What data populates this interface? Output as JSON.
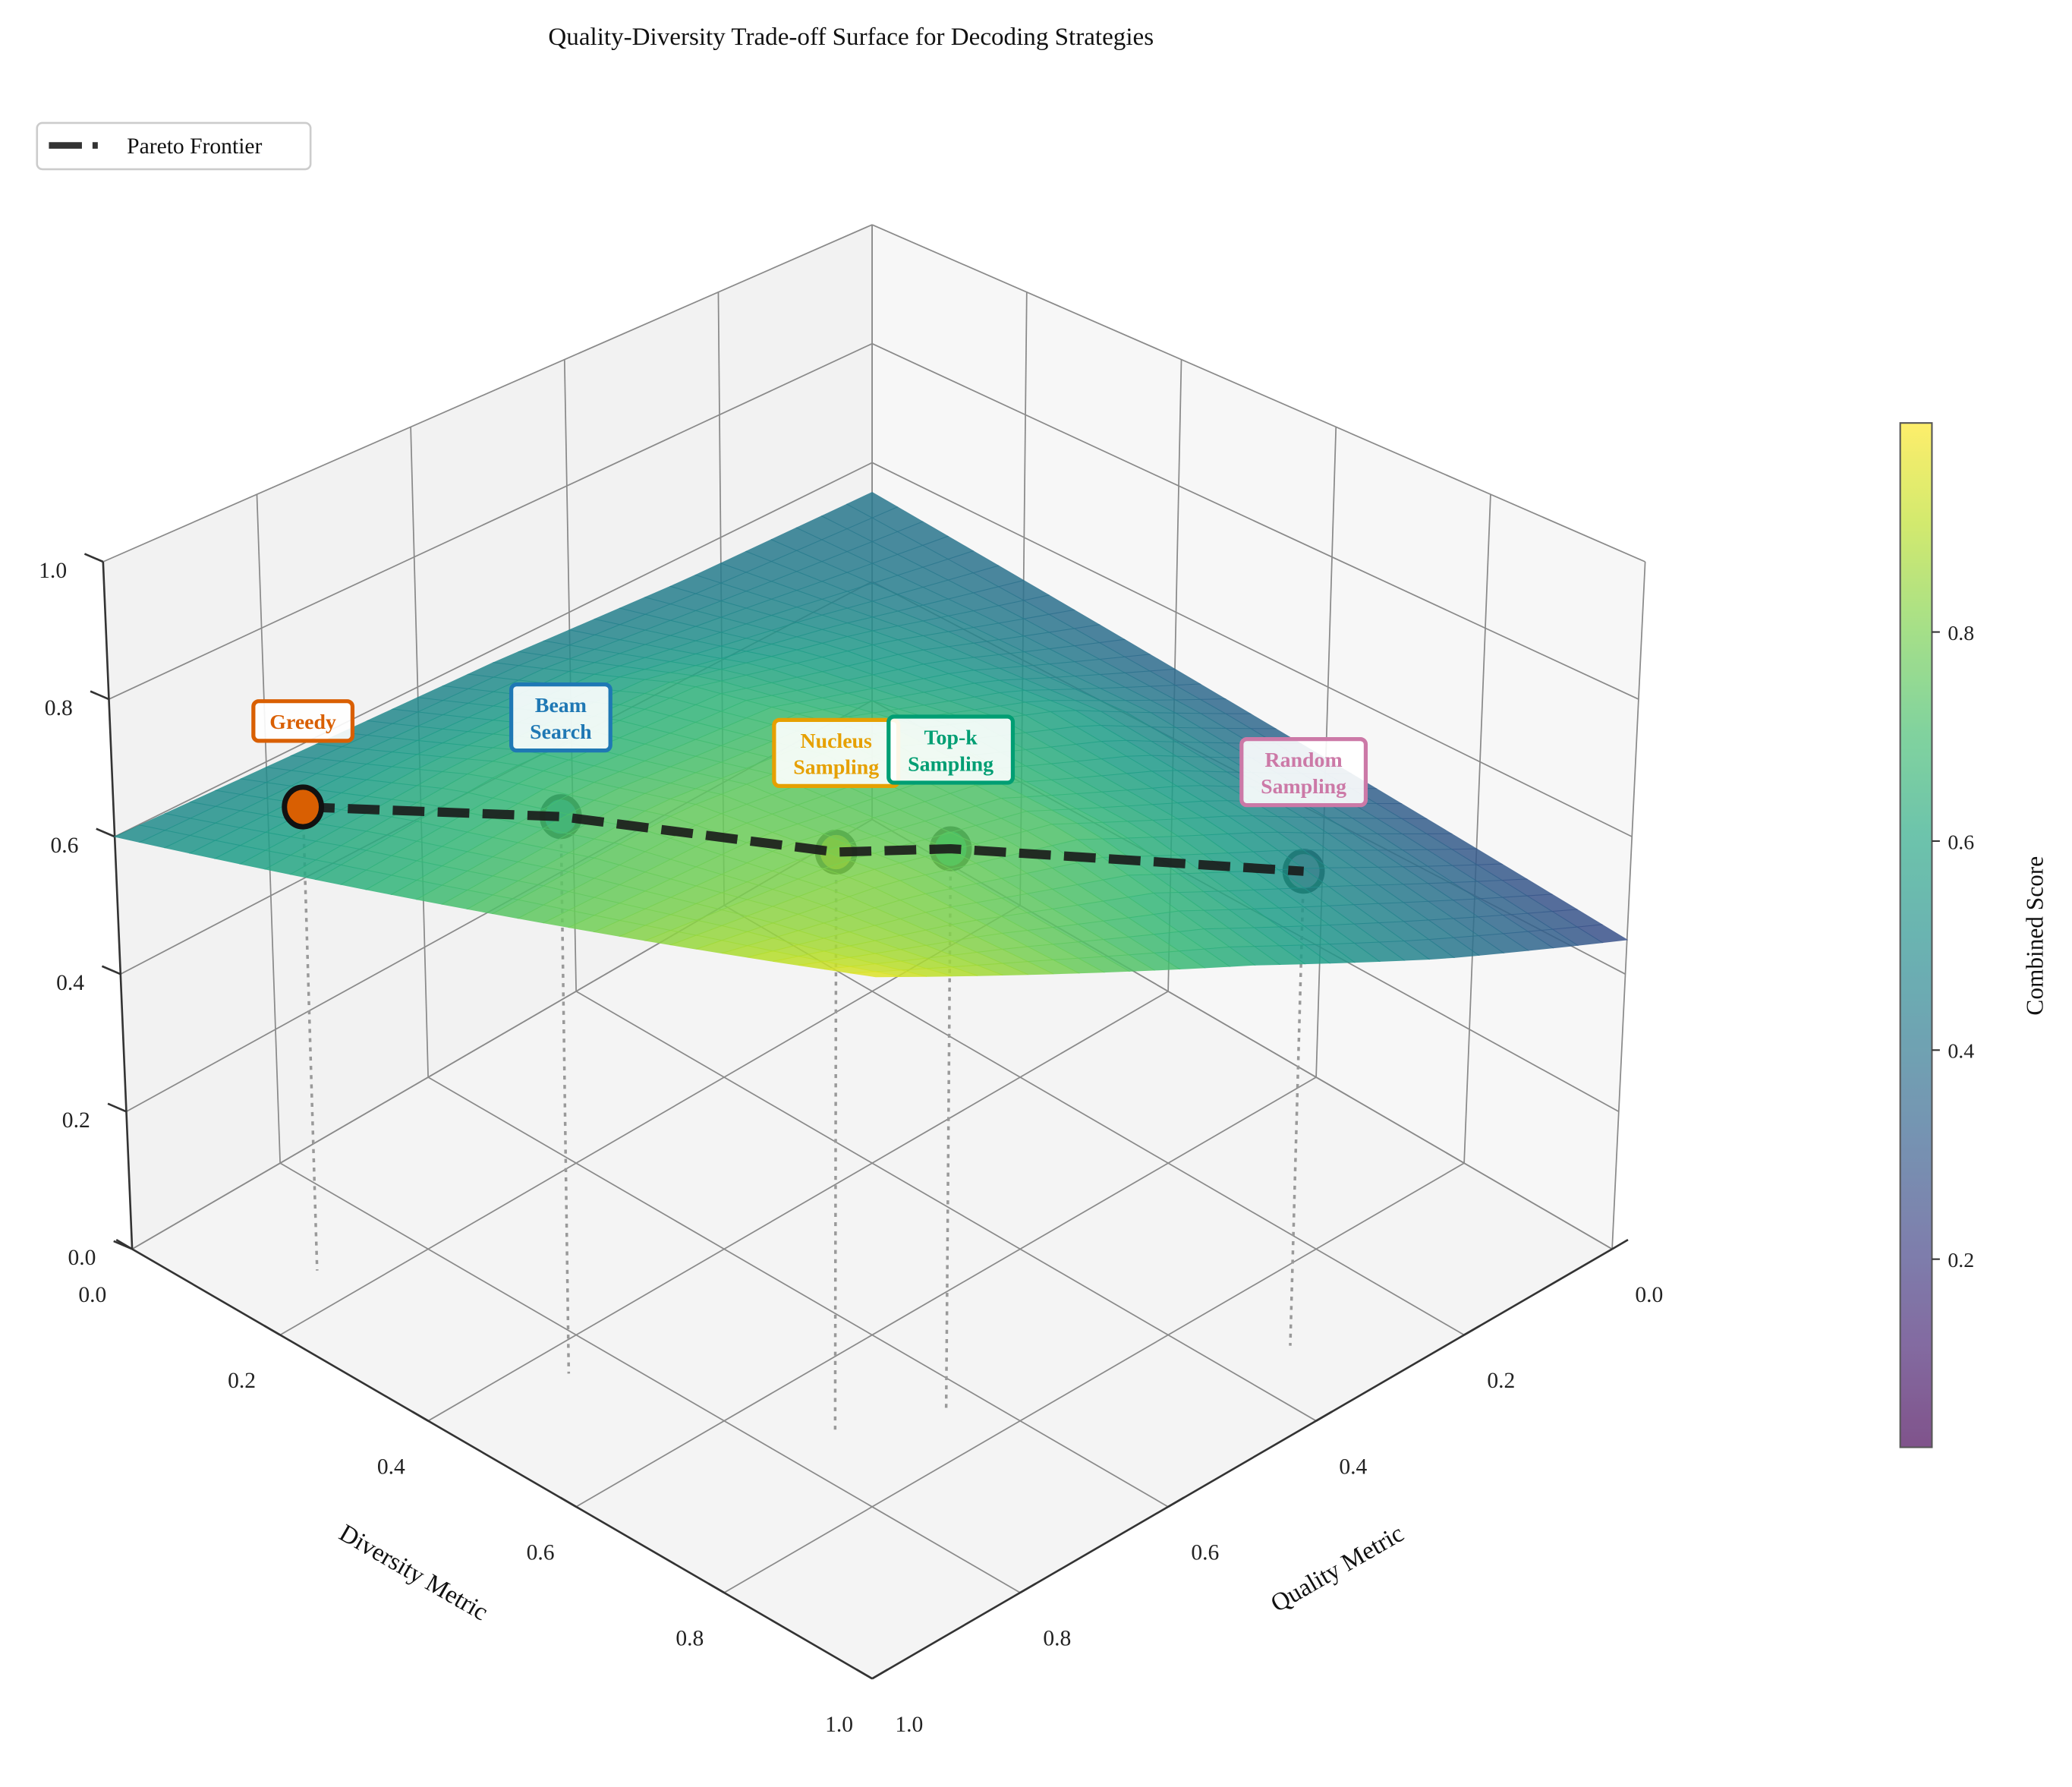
{
  "chart_data": {
    "type": "surface3d",
    "title": "Quality-Diversity Trade-off Surface for Decoding Strategies",
    "xlabel": "Quality Metric",
    "ylabel": "Diversity Metric",
    "zlabel": "",
    "xlim": [
      0,
      1
    ],
    "ylim": [
      0,
      1
    ],
    "zlim": [
      0,
      1
    ],
    "x_ticks": [
      "0.0",
      "0.2",
      "0.4",
      "0.6",
      "0.8",
      "1.0"
    ],
    "y_ticks": [
      "0.0",
      "0.2",
      "0.4",
      "0.6",
      "0.8",
      "1.0"
    ],
    "z_ticks": [
      "0.0",
      "0.2",
      "0.4",
      "0.6",
      "0.8",
      "1.0"
    ],
    "grid": true,
    "colormap": "viridis",
    "colorbar": {
      "label": "Combined Score",
      "range": [
        0.02,
        1.0
      ],
      "ticks": [
        "0.2",
        "0.4",
        "0.6",
        "0.8"
      ]
    },
    "surface": {
      "quality": [
        0,
        0.25,
        0.5,
        0.75,
        1
      ],
      "diversity": [
        0,
        0.25,
        0.5,
        0.75,
        1
      ],
      "z": [
        [
          0.55,
          0.525,
          0.5,
          0.475,
          0.45
        ],
        [
          0.56,
          0.62,
          0.65,
          0.62,
          0.56
        ],
        [
          0.58,
          0.69,
          0.75,
          0.74,
          0.68
        ],
        [
          0.59,
          0.7,
          0.77,
          0.8,
          0.79
        ],
        [
          0.6,
          0.675,
          0.75,
          0.825,
          0.9
        ]
      ]
    },
    "points": [
      {
        "label": "Greedy",
        "lines": [
          "Greedy"
        ],
        "quality": 0.9,
        "diversity": 0.15,
        "score": 0.67,
        "color": "#d95f02"
      },
      {
        "label": "Beam Search",
        "lines": [
          "Beam",
          "Search"
        ],
        "quality": 0.85,
        "diversity": 0.44,
        "score": 0.78,
        "color": "#1f78b4"
      },
      {
        "label": "Nucleus Sampling",
        "lines": [
          "Nucleus",
          "Sampling"
        ],
        "quality": 0.74,
        "diversity": 0.69,
        "score": 0.8,
        "color": "#e6a000"
      },
      {
        "label": "Top-k Sampling",
        "lines": [
          "Top-k",
          "Sampling"
        ],
        "quality": 0.64,
        "diversity": 0.74,
        "score": 0.78,
        "color": "#009e73"
      },
      {
        "label": "Random Sampling",
        "lines": [
          "Random",
          "Sampling"
        ],
        "quality": 0.33,
        "diversity": 0.895,
        "score": 0.67,
        "color": "#cc79a7"
      }
    ],
    "legend": {
      "placement": "top-left",
      "entries": [
        {
          "label": "Pareto Frontier",
          "style": "dashed",
          "color": "#222222"
        }
      ]
    }
  }
}
